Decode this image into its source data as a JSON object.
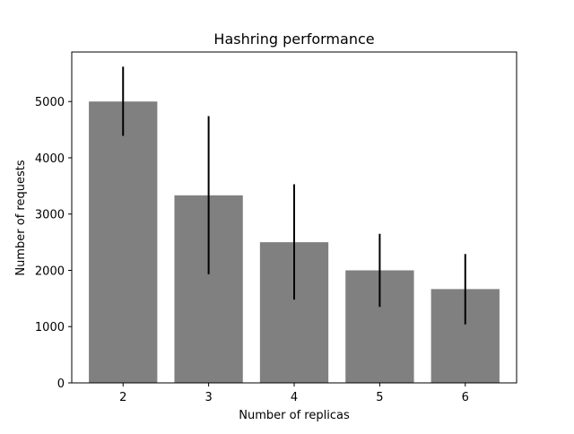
{
  "chart_data": {
    "type": "bar",
    "title": "Hashring performance",
    "xlabel": "Number of replicas",
    "ylabel": "Number of requests",
    "categories": [
      "2",
      "3",
      "4",
      "5",
      "6"
    ],
    "values": [
      5000,
      3333,
      2500,
      2000,
      1667
    ],
    "error_low": [
      4390,
      1930,
      1480,
      1350,
      1040
    ],
    "error_high": [
      5620,
      4740,
      3530,
      2650,
      2290
    ],
    "yticks": [
      0,
      1000,
      2000,
      3000,
      4000,
      5000
    ],
    "ylim": [
      0,
      5880
    ],
    "grid": false,
    "colors": {
      "bar": "#808080",
      "error_bar": "#000000",
      "axis": "#000000"
    }
  }
}
